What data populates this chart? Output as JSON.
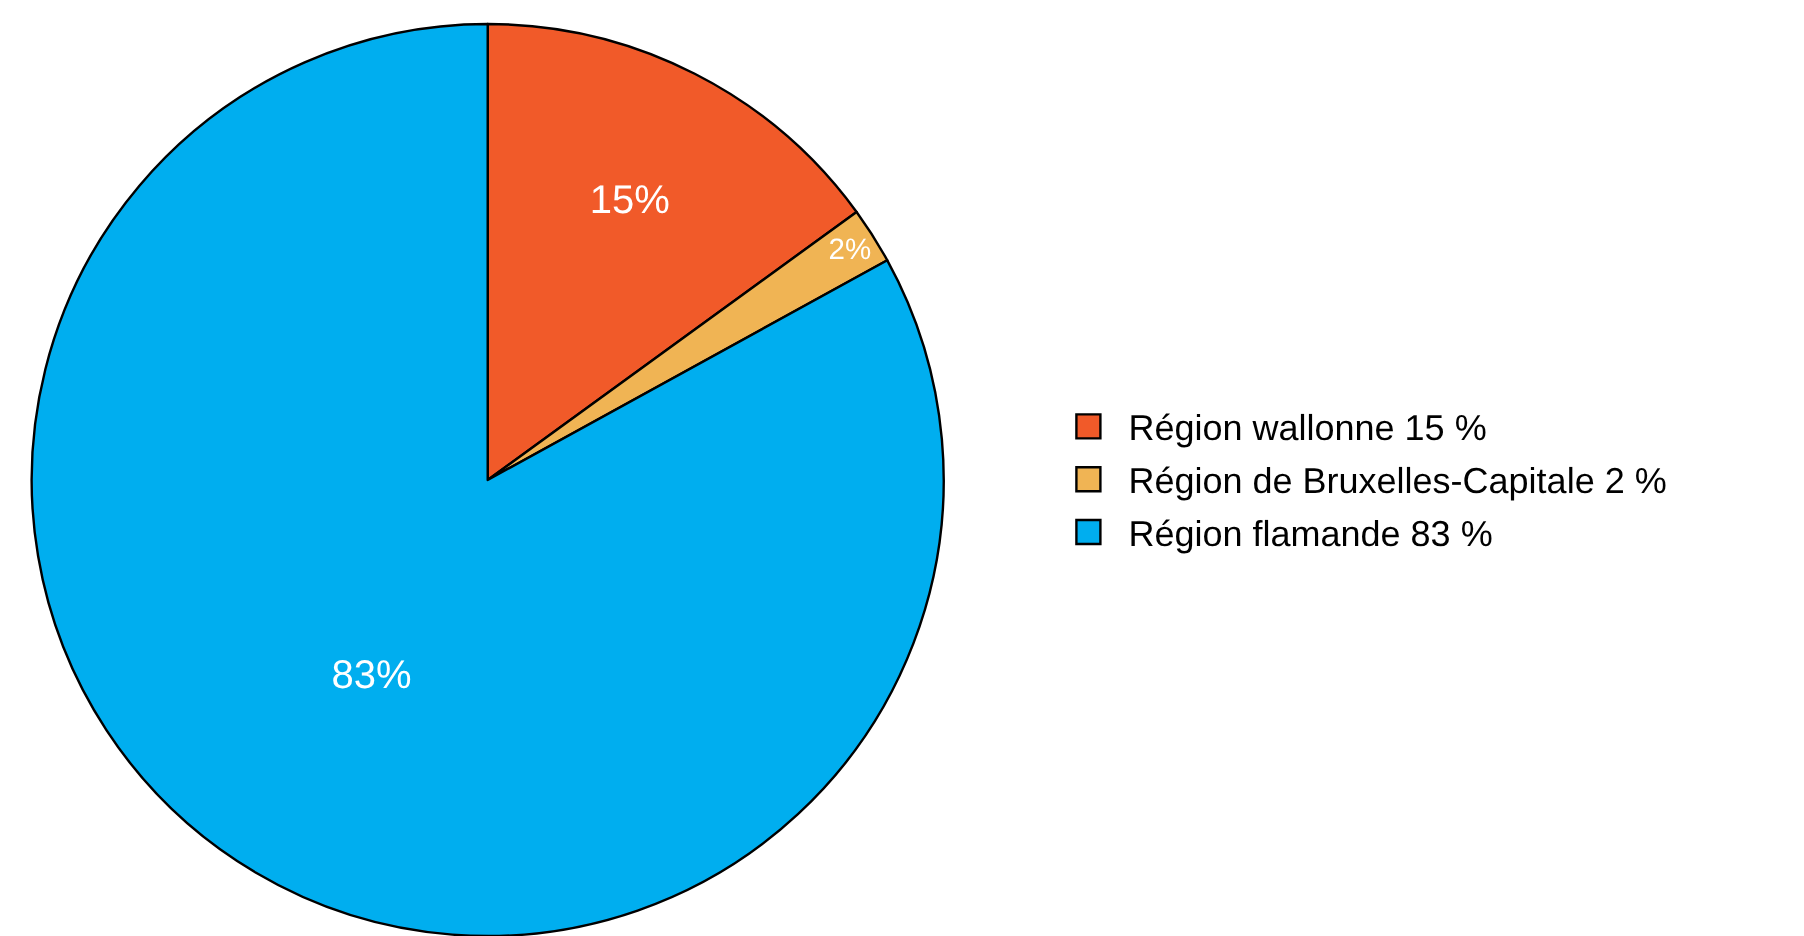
{
  "chart_data": {
    "type": "pie",
    "categories": [
      "Région wallonne 15 %",
      "Région de Bruxelles-Capitale 2 %",
      "Région flamande 83 %"
    ],
    "values": [
      15,
      2,
      83
    ],
    "colors": [
      "#f15a29",
      "#f0b454",
      "#00aeef"
    ],
    "value_labels": [
      "15%",
      "2%",
      "83%"
    ],
    "legend": "right"
  }
}
